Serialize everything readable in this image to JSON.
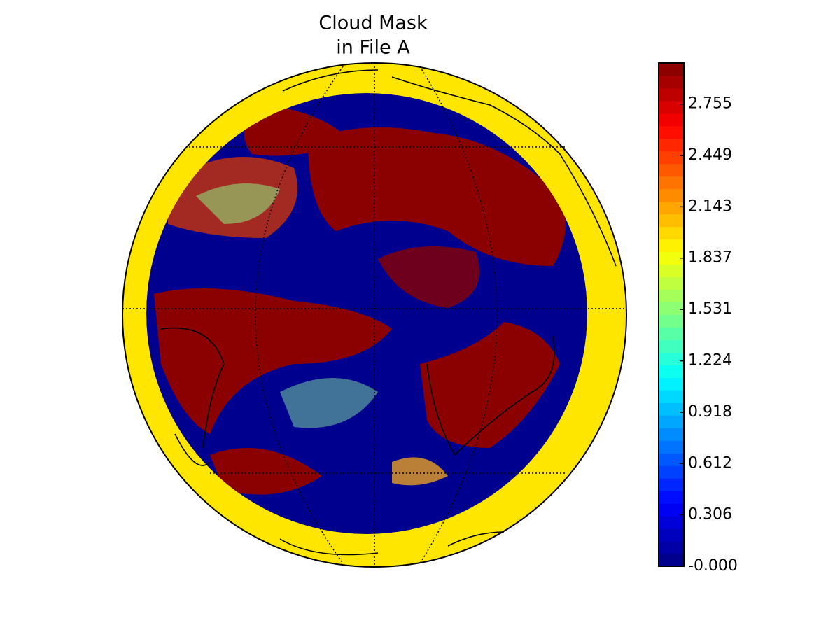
{
  "chart_data": {
    "type": "map",
    "title": [
      "Cloud Mask",
      "in File A"
    ],
    "colorbar": {
      "colormap": "jet",
      "levels": 40,
      "clim": [
        0,
        3
      ],
      "ticks": [
        {
          "value": 0,
          "label": "-0.000"
        },
        0.306,
        0.612,
        0.918,
        1.224,
        1.531,
        1.837,
        2.143,
        2.449,
        2.755
      ]
    }
  }
}
